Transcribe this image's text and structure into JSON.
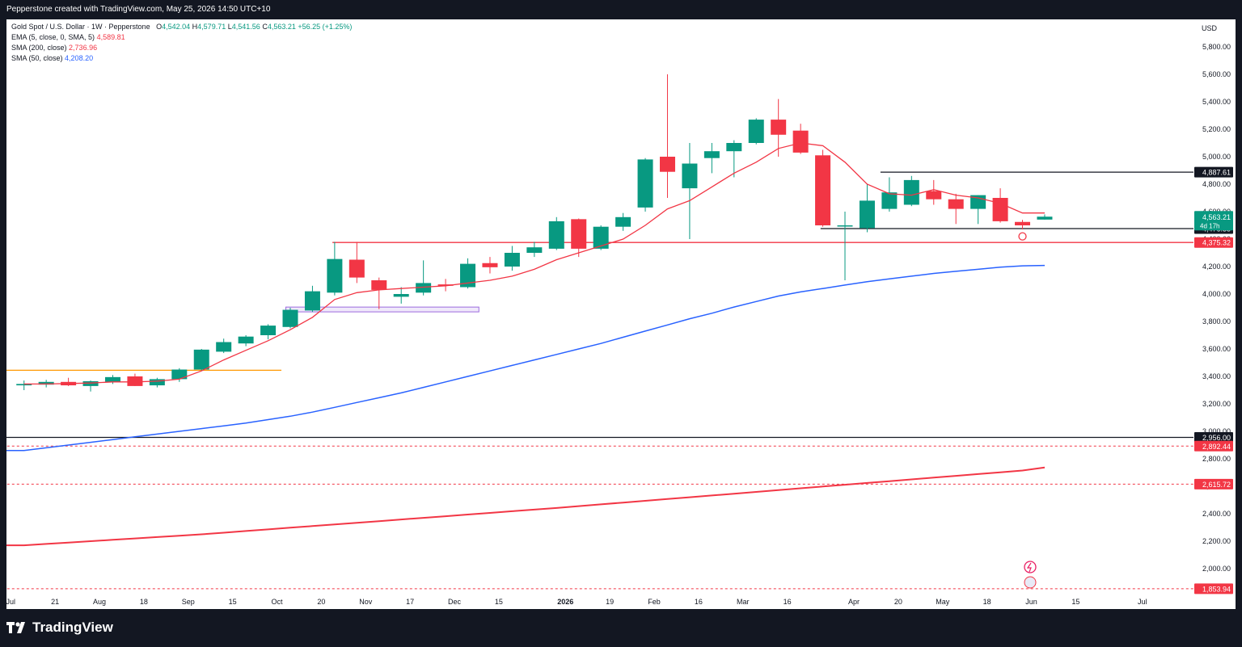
{
  "header": {
    "caption": "Pepperstone created with TradingView.com, May 25, 2026 14:50 UTC+10"
  },
  "legend": {
    "symbol": "Gold Spot / U.S. Dollar · 1W · Pepperstone",
    "o_label": "O",
    "o": "4,542.04",
    "h_label": "H",
    "h": "4,579.71",
    "l_label": "L",
    "l": "4,541.56",
    "c_label": "C",
    "c": "4,563.21",
    "change": "+56.25 (+1.25%)",
    "indicators": [
      {
        "label": "EMA (5, close, 0, SMA, 5)",
        "value": "4,589.81",
        "color": "#f23645"
      },
      {
        "label": "SMA (200, close)",
        "value": "2,736.96",
        "color": "#f23645"
      },
      {
        "label": "SMA (50, close)",
        "value": "4,208.20",
        "color": "#2962ff"
      }
    ]
  },
  "footer": {
    "brand": "TradingView"
  },
  "chart_data": {
    "type": "candlestick",
    "currency": "USD",
    "ylim": [
      1800,
      5950
    ],
    "y_ticks": [
      2000,
      2200,
      2400,
      2600,
      2800,
      3000,
      3200,
      3400,
      3600,
      3800,
      4000,
      4200,
      4400,
      4600,
      4800,
      5000,
      5200,
      5400,
      5600,
      5800
    ],
    "y_tick_labels": [
      "2,000.00",
      "2,200.00",
      "2,400.00",
      "2,600.00",
      "2,800.00",
      "3,000.00",
      "3,200.00",
      "3,400.00",
      "3,600.00",
      "3,800.00",
      "4,000.00",
      "4,200.00",
      "4,400.00",
      "4,600.00",
      "4,800.00",
      "5,000.00",
      "5,200.00",
      "5,400.00",
      "5,600.00",
      "5,800.00"
    ],
    "x_ticks": [
      {
        "label": "Jul",
        "bar": -0.6,
        "bold": false
      },
      {
        "label": "21",
        "bar": 1.4,
        "bold": false
      },
      {
        "label": "Aug",
        "bar": 3.4,
        "bold": false
      },
      {
        "label": "18",
        "bar": 5.4,
        "bold": false
      },
      {
        "label": "Sep",
        "bar": 7.4,
        "bold": false
      },
      {
        "label": "15",
        "bar": 9.4,
        "bold": false
      },
      {
        "label": "Oct",
        "bar": 11.4,
        "bold": false
      },
      {
        "label": "20",
        "bar": 13.4,
        "bold": false
      },
      {
        "label": "Nov",
        "bar": 15.4,
        "bold": false
      },
      {
        "label": "17",
        "bar": 17.4,
        "bold": false
      },
      {
        "label": "Dec",
        "bar": 19.4,
        "bold": false
      },
      {
        "label": "15",
        "bar": 21.4,
        "bold": false
      },
      {
        "label": "2026",
        "bar": 24.4,
        "bold": true
      },
      {
        "label": "19",
        "bar": 26.4,
        "bold": false
      },
      {
        "label": "Feb",
        "bar": 28.4,
        "bold": false
      },
      {
        "label": "16",
        "bar": 30.4,
        "bold": false
      },
      {
        "label": "Mar",
        "bar": 32.4,
        "bold": false
      },
      {
        "label": "16",
        "bar": 34.4,
        "bold": false
      },
      {
        "label": "Apr",
        "bar": 37.4,
        "bold": false
      },
      {
        "label": "20",
        "bar": 39.4,
        "bold": false
      },
      {
        "label": "May",
        "bar": 41.4,
        "bold": false
      },
      {
        "label": "18",
        "bar": 43.4,
        "bold": false
      },
      {
        "label": "Jun",
        "bar": 45.4,
        "bold": false
      },
      {
        "label": "15",
        "bar": 47.4,
        "bold": false
      },
      {
        "label": "Jul",
        "bar": 50.4,
        "bold": false
      }
    ],
    "candles": [
      {
        "o": 3335,
        "h": 3370,
        "l": 3300,
        "c": 3345
      },
      {
        "o": 3340,
        "h": 3375,
        "l": 3320,
        "c": 3360
      },
      {
        "o": 3360,
        "h": 3390,
        "l": 3330,
        "c": 3335
      },
      {
        "o": 3330,
        "h": 3370,
        "l": 3290,
        "c": 3365
      },
      {
        "o": 3360,
        "h": 3410,
        "l": 3345,
        "c": 3395
      },
      {
        "o": 3400,
        "h": 3420,
        "l": 3330,
        "c": 3330
      },
      {
        "o": 3335,
        "h": 3390,
        "l": 3320,
        "c": 3380
      },
      {
        "o": 3380,
        "h": 3460,
        "l": 3360,
        "c": 3450
      },
      {
        "o": 3450,
        "h": 3600,
        "l": 3440,
        "c": 3595
      },
      {
        "o": 3580,
        "h": 3675,
        "l": 3570,
        "c": 3650
      },
      {
        "o": 3640,
        "h": 3700,
        "l": 3620,
        "c": 3690
      },
      {
        "o": 3700,
        "h": 3780,
        "l": 3670,
        "c": 3770
      },
      {
        "o": 3760,
        "h": 3900,
        "l": 3750,
        "c": 3885
      },
      {
        "o": 3880,
        "h": 4060,
        "l": 3870,
        "c": 4020
      },
      {
        "o": 4010,
        "h": 4380,
        "l": 3990,
        "c": 4255
      },
      {
        "o": 4250,
        "h": 4380,
        "l": 4080,
        "c": 4120
      },
      {
        "o": 4100,
        "h": 4120,
        "l": 3890,
        "c": 4030
      },
      {
        "o": 3980,
        "h": 4050,
        "l": 3930,
        "c": 4000
      },
      {
        "o": 4010,
        "h": 4245,
        "l": 3990,
        "c": 4080
      },
      {
        "o": 4070,
        "h": 4110,
        "l": 4020,
        "c": 4060
      },
      {
        "o": 4050,
        "h": 4260,
        "l": 4040,
        "c": 4220
      },
      {
        "o": 4225,
        "h": 4270,
        "l": 4150,
        "c": 4195
      },
      {
        "o": 4200,
        "h": 4350,
        "l": 4170,
        "c": 4300
      },
      {
        "o": 4300,
        "h": 4380,
        "l": 4270,
        "c": 4340
      },
      {
        "o": 4330,
        "h": 4560,
        "l": 4320,
        "c": 4530
      },
      {
        "o": 4545,
        "h": 4550,
        "l": 4270,
        "c": 4330
      },
      {
        "o": 4330,
        "h": 4500,
        "l": 4320,
        "c": 4490
      },
      {
        "o": 4490,
        "h": 4590,
        "l": 4460,
        "c": 4560
      },
      {
        "o": 4630,
        "h": 4990,
        "l": 4600,
        "c": 4980
      },
      {
        "o": 5000,
        "h": 5600,
        "l": 4700,
        "c": 4890
      },
      {
        "o": 4770,
        "h": 5100,
        "l": 4400,
        "c": 4950
      },
      {
        "o": 4990,
        "h": 5100,
        "l": 4880,
        "c": 5040
      },
      {
        "o": 5040,
        "h": 5120,
        "l": 4850,
        "c": 5100
      },
      {
        "o": 5100,
        "h": 5280,
        "l": 5090,
        "c": 5270
      },
      {
        "o": 5270,
        "h": 5420,
        "l": 5000,
        "c": 5160
      },
      {
        "o": 5190,
        "h": 5240,
        "l": 5020,
        "c": 5030
      },
      {
        "o": 5010,
        "h": 5050,
        "l": 4490,
        "c": 4500
      },
      {
        "o": 4500,
        "h": 4600,
        "l": 4100,
        "c": 4500
      },
      {
        "o": 4480,
        "h": 4800,
        "l": 4450,
        "c": 4680
      },
      {
        "o": 4620,
        "h": 4850,
        "l": 4600,
        "c": 4740
      },
      {
        "o": 4650,
        "h": 4860,
        "l": 4640,
        "c": 4830
      },
      {
        "o": 4750,
        "h": 4830,
        "l": 4650,
        "c": 4690
      },
      {
        "o": 4690,
        "h": 4730,
        "l": 4510,
        "c": 4620
      },
      {
        "o": 4620,
        "h": 4720,
        "l": 4510,
        "c": 4720
      },
      {
        "o": 4700,
        "h": 4770,
        "l": 4520,
        "c": 4530
      },
      {
        "o": 4525,
        "h": 4540,
        "l": 4470,
        "c": 4500
      },
      {
        "o": 4542.04,
        "h": 4579.71,
        "l": 4541.56,
        "c": 4563.21
      }
    ],
    "ema5": [
      3345,
      3345,
      3348,
      3352,
      3360,
      3360,
      3365,
      3380,
      3440,
      3520,
      3590,
      3660,
      3740,
      3830,
      3960,
      4010,
      4030,
      4040,
      4050,
      4060,
      4080,
      4100,
      4130,
      4180,
      4250,
      4300,
      4350,
      4400,
      4500,
      4620,
      4680,
      4780,
      4880,
      4960,
      5060,
      5100,
      5080,
      4960,
      4800,
      4730,
      4720,
      4760,
      4720,
      4700,
      4660,
      4590,
      4589.81
    ],
    "sma50": [
      2860,
      2880,
      2900,
      2920,
      2940,
      2960,
      2980,
      3000,
      3020,
      3040,
      3060,
      3085,
      3110,
      3140,
      3175,
      3210,
      3245,
      3280,
      3320,
      3360,
      3400,
      3440,
      3480,
      3520,
      3560,
      3600,
      3640,
      3685,
      3730,
      3775,
      3820,
      3860,
      3905,
      3945,
      3985,
      4015,
      4040,
      4065,
      4090,
      4110,
      4130,
      4150,
      4165,
      4180,
      4195,
      4205,
      4208.2
    ],
    "sma200": [
      2170,
      2180,
      2190,
      2200,
      2210,
      2220,
      2230,
      2240,
      2250,
      2262,
      2274,
      2286,
      2298,
      2310,
      2322,
      2334,
      2346,
      2358,
      2370,
      2382,
      2394,
      2406,
      2418,
      2430,
      2442,
      2455,
      2468,
      2481,
      2494,
      2507,
      2520,
      2533,
      2546,
      2559,
      2572,
      2585,
      2598,
      2611,
      2624,
      2637,
      2650,
      2663,
      2676,
      2689,
      2702,
      2715,
      2736.96
    ],
    "horizontal_lines": [
      {
        "price": 4887.61,
        "label": "4,887.61",
        "style": "solid",
        "color": "#131722",
        "from_bar": 38.6,
        "to_bar": 53.4
      },
      {
        "price": 4476.35,
        "label": "4,476.35",
        "style": "solid",
        "color": "#131722",
        "from_bar": 35.9,
        "to_bar": 53.4
      },
      {
        "price": 4375.32,
        "label": "4,375.32",
        "style": "solid",
        "color": "#f23645",
        "from_bar": 13.9,
        "to_bar": 53.4
      },
      {
        "price": 2956.0,
        "label": "2,956.00",
        "style": "solid",
        "color": "#131722",
        "from_bar": -1.2,
        "to_bar": 53.4
      },
      {
        "price": 2892.44,
        "label": "2,892.44",
        "style": "dashed",
        "color": "#f23645",
        "from_bar": -1.2,
        "to_bar": 53.4
      },
      {
        "price": 2615.72,
        "label": "2,615.72",
        "style": "dashed",
        "color": "#f23645",
        "from_bar": -1.2,
        "to_bar": 53.4
      },
      {
        "price": 1853.94,
        "label": "1,853.94",
        "style": "dashed",
        "color": "#f23645",
        "from_bar": -1.2,
        "to_bar": 53.4
      },
      {
        "price": 3445,
        "label": "",
        "style": "solid",
        "color": "#ff9800",
        "from_bar": -1.2,
        "to_bar": 11.6
      }
    ],
    "zone": {
      "y1": 3870,
      "y2": 3905,
      "from_bar": 11.8,
      "to_bar": 20.5,
      "color": "#9c6bde"
    },
    "last_price": {
      "label": "4,563.21",
      "countdown": "4d 17h",
      "color": "#089981"
    },
    "colors": {
      "up": "#089981",
      "down": "#f23645",
      "axis_text": "#131722",
      "grid": "#e0e3eb"
    }
  }
}
